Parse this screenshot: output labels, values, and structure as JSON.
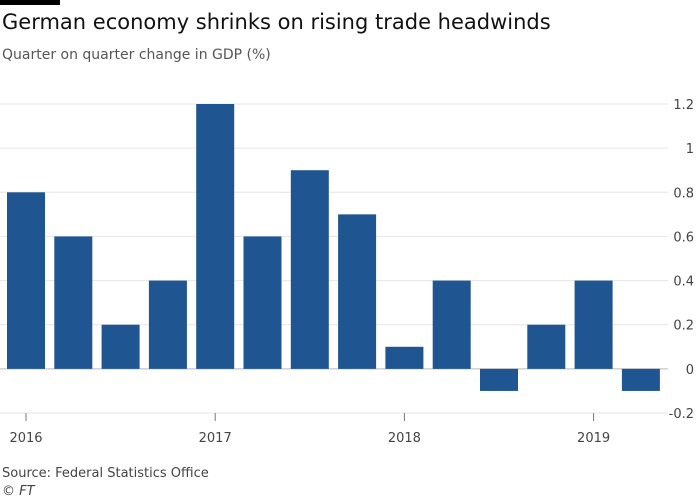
{
  "title": "German economy shrinks on rising trade headwinds",
  "subtitle": "Quarter on quarter change in GDP (%)",
  "source": "Source: Federal Statistics Office",
  "copyright": "© FT",
  "colors": {
    "bar": "#1f5591",
    "grid": "#e6e6e6",
    "zero": "#b9b9b9"
  },
  "chart_data": {
    "type": "bar",
    "title": "German economy shrinks on rising trade headwinds",
    "subtitle": "Quarter on quarter change in GDP (%)",
    "categories": [
      "2016 Q1",
      "2016 Q2",
      "2016 Q3",
      "2016 Q4",
      "2017 Q1",
      "2017 Q2",
      "2017 Q3",
      "2017 Q4",
      "2018 Q1",
      "2018 Q2",
      "2018 Q3",
      "2018 Q4",
      "2019 Q1",
      "2019 Q2"
    ],
    "values": [
      0.8,
      0.6,
      0.2,
      0.4,
      1.2,
      0.6,
      0.9,
      0.7,
      0.1,
      0.4,
      -0.1,
      0.2,
      0.4,
      -0.1
    ],
    "ylim": [
      -0.2,
      1.2
    ],
    "yticks": [
      -0.2,
      0,
      0.2,
      0.4,
      0.6,
      0.8,
      1,
      1.2
    ],
    "ytick_labels": [
      "-0.2",
      "0",
      "0.2",
      "0.4",
      "0.6",
      "0.8",
      "1",
      "1.2"
    ],
    "xtick_labels": [
      {
        "label": "2016",
        "index": 0
      },
      {
        "label": "2017",
        "index": 4
      },
      {
        "label": "2018",
        "index": 8
      },
      {
        "label": "2019",
        "index": 12
      }
    ],
    "y_axis_position": "right",
    "grid": true,
    "xlabel": "",
    "ylabel": ""
  }
}
